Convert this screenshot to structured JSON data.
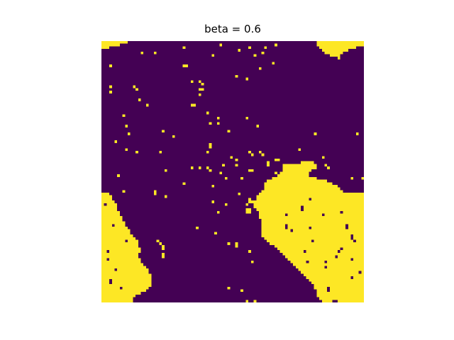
{
  "chart_data": {
    "type": "heatmap",
    "title": "beta = 0.6",
    "xlabel": "",
    "ylabel": "",
    "grid": false,
    "axes_visible": false,
    "colormap": "viridis",
    "rows": 100,
    "cols": 100,
    "background_value": -1,
    "background_color": "#440154",
    "cluster_value": 1,
    "cluster_color": "#fde725",
    "clusters": [
      {
        "name": "top-left-edge",
        "fill_rows": [
          [
            0,
            0,
            9
          ],
          [
            1,
            0,
            6
          ],
          [
            2,
            0,
            2
          ]
        ]
      },
      {
        "name": "top-right-corner",
        "fill_rows": [
          [
            0,
            82,
            99
          ],
          [
            1,
            82,
            99
          ],
          [
            2,
            83,
            96
          ],
          [
            3,
            84,
            93
          ],
          [
            4,
            85,
            91
          ],
          [
            5,
            87,
            90
          ]
        ]
      },
      {
        "name": "left-blob",
        "fill_rows": [
          [
            58,
            0,
            2
          ],
          [
            59,
            0,
            3
          ],
          [
            60,
            0,
            3
          ],
          [
            61,
            0,
            4
          ],
          [
            62,
            0,
            5
          ],
          [
            63,
            0,
            5
          ],
          [
            64,
            0,
            5
          ],
          [
            65,
            0,
            6
          ],
          [
            66,
            0,
            6
          ],
          [
            67,
            0,
            7
          ],
          [
            68,
            0,
            7
          ],
          [
            69,
            0,
            8
          ],
          [
            70,
            0,
            8
          ],
          [
            71,
            0,
            9
          ],
          [
            72,
            0,
            10
          ],
          [
            73,
            0,
            10
          ],
          [
            74,
            0,
            11
          ],
          [
            75,
            0,
            12
          ],
          [
            76,
            0,
            13
          ],
          [
            77,
            0,
            13
          ],
          [
            78,
            0,
            13
          ],
          [
            79,
            0,
            14
          ],
          [
            80,
            0,
            14
          ],
          [
            81,
            0,
            13
          ],
          [
            82,
            0,
            13
          ],
          [
            83,
            0,
            14
          ],
          [
            84,
            0,
            14
          ],
          [
            85,
            0,
            15
          ],
          [
            86,
            0,
            16
          ],
          [
            87,
            0,
            17
          ],
          [
            88,
            0,
            17
          ],
          [
            89,
            0,
            18
          ],
          [
            90,
            0,
            18
          ],
          [
            91,
            0,
            18
          ],
          [
            92,
            0,
            18
          ],
          [
            93,
            0,
            18
          ],
          [
            94,
            0,
            17
          ],
          [
            95,
            0,
            16
          ],
          [
            96,
            0,
            14
          ],
          [
            97,
            0,
            12
          ],
          [
            98,
            0,
            11
          ],
          [
            99,
            0,
            11
          ]
        ]
      },
      {
        "name": "right-blob",
        "fill_rows": [
          [
            46,
            76,
            80
          ],
          [
            47,
            69,
            81
          ],
          [
            48,
            69,
            81
          ],
          [
            49,
            69,
            79
          ],
          [
            50,
            68,
            78
          ],
          [
            51,
            67,
            78
          ],
          [
            52,
            65,
            81
          ],
          [
            53,
            63,
            85
          ],
          [
            54,
            62,
            87
          ],
          [
            55,
            62,
            89
          ],
          [
            56,
            62,
            90
          ],
          [
            57,
            61,
            91
          ],
          [
            58,
            60,
            99
          ],
          [
            59,
            59,
            99
          ],
          [
            60,
            59,
            99
          ],
          [
            61,
            58,
            99
          ],
          [
            62,
            58,
            99
          ],
          [
            63,
            58,
            99
          ],
          [
            64,
            59,
            99
          ],
          [
            65,
            60,
            99
          ],
          [
            66,
            60,
            99
          ],
          [
            67,
            60,
            99
          ],
          [
            68,
            61,
            99
          ],
          [
            69,
            61,
            99
          ],
          [
            70,
            61,
            99
          ],
          [
            71,
            61,
            99
          ],
          [
            72,
            61,
            99
          ],
          [
            73,
            61,
            99
          ],
          [
            74,
            61,
            99
          ],
          [
            75,
            62,
            99
          ],
          [
            76,
            63,
            99
          ],
          [
            77,
            64,
            99
          ],
          [
            78,
            66,
            99
          ],
          [
            79,
            67,
            99
          ],
          [
            80,
            68,
            99
          ],
          [
            81,
            69,
            99
          ],
          [
            82,
            70,
            99
          ],
          [
            83,
            71,
            99
          ],
          [
            84,
            72,
            99
          ],
          [
            85,
            73,
            99
          ],
          [
            86,
            74,
            99
          ],
          [
            87,
            75,
            99
          ],
          [
            88,
            76,
            99
          ],
          [
            89,
            77,
            99
          ],
          [
            90,
            78,
            99
          ],
          [
            91,
            79,
            99
          ],
          [
            92,
            80,
            99
          ],
          [
            93,
            81,
            99
          ],
          [
            94,
            81,
            99
          ],
          [
            95,
            82,
            99
          ],
          [
            96,
            82,
            99
          ],
          [
            97,
            82,
            99
          ],
          [
            98,
            83,
            99
          ],
          [
            99,
            84,
            99
          ]
        ]
      }
    ],
    "holes": [
      [
        63,
        76
      ],
      [
        64,
        76
      ],
      [
        66,
        84
      ],
      [
        70,
        70
      ],
      [
        71,
        70
      ],
      [
        72,
        72
      ],
      [
        70,
        93
      ],
      [
        71,
        93
      ],
      [
        74,
        95
      ],
      [
        75,
        95
      ],
      [
        79,
        91
      ],
      [
        80,
        90
      ],
      [
        82,
        89
      ],
      [
        84,
        78
      ],
      [
        86,
        85
      ],
      [
        88,
        98
      ],
      [
        76,
        96
      ],
      [
        94,
        86
      ],
      [
        95,
        86
      ],
      [
        97,
        80
      ],
      [
        66,
        70
      ],
      [
        80,
        77
      ],
      [
        99,
        88
      ],
      [
        99,
        89
      ],
      [
        84,
        85
      ],
      [
        76,
        80
      ],
      [
        83,
        95
      ],
      [
        71,
        79
      ],
      [
        90,
        95
      ],
      [
        60,
        79
      ],
      [
        65,
        91
      ],
      [
        61,
        6
      ],
      [
        59,
        4
      ],
      [
        80,
        2
      ],
      [
        83,
        2
      ],
      [
        87,
        5
      ],
      [
        91,
        3
      ],
      [
        92,
        3
      ],
      [
        94,
        7
      ],
      [
        70,
        4
      ],
      [
        76,
        9
      ],
      [
        62,
        1
      ]
    ],
    "isolated_points": [
      [
        4,
        15
      ],
      [
        4,
        20
      ],
      [
        2,
        31
      ],
      [
        5,
        42
      ],
      [
        3,
        52
      ],
      [
        5,
        58
      ],
      [
        4,
        61
      ],
      [
        2,
        56
      ],
      [
        2,
        62
      ],
      [
        1,
        66
      ],
      [
        8,
        65
      ],
      [
        9,
        3
      ],
      [
        10,
        60
      ],
      [
        14,
        55
      ],
      [
        13,
        51
      ],
      [
        1,
        45
      ],
      [
        6,
        90
      ],
      [
        19,
        3
      ],
      [
        17,
        12
      ],
      [
        18,
        13
      ],
      [
        20,
        37
      ],
      [
        22,
        14
      ],
      [
        24,
        17
      ],
      [
        27,
        40
      ],
      [
        28,
        8
      ],
      [
        29,
        55
      ],
      [
        31,
        44
      ],
      [
        32,
        59
      ],
      [
        34,
        48
      ],
      [
        35,
        81
      ],
      [
        35,
        97
      ],
      [
        36,
        27
      ],
      [
        34,
        23
      ],
      [
        35,
        10
      ],
      [
        38,
        5
      ],
      [
        41,
        9
      ],
      [
        42,
        13
      ],
      [
        42,
        22
      ],
      [
        42,
        40
      ],
      [
        43,
        57
      ],
      [
        42,
        60
      ],
      [
        43,
        61
      ],
      [
        42,
        56
      ],
      [
        44,
        49
      ],
      [
        45,
        51
      ],
      [
        47,
        46
      ],
      [
        47,
        51
      ],
      [
        48,
        34
      ],
      [
        48,
        37
      ],
      [
        48,
        40
      ],
      [
        48,
        86
      ],
      [
        49,
        24
      ],
      [
        49,
        56
      ],
      [
        49,
        57
      ],
      [
        49,
        41
      ],
      [
        50,
        45
      ],
      [
        51,
        6
      ],
      [
        52,
        53
      ],
      [
        52,
        95
      ],
      [
        52,
        99
      ],
      [
        52,
        47
      ],
      [
        53,
        69
      ],
      [
        54,
        31
      ],
      [
        55,
        42
      ],
      [
        57,
        65
      ],
      [
        57,
        8
      ],
      [
        58,
        52
      ],
      [
        59,
        24
      ],
      [
        60,
        84
      ],
      [
        61,
        42
      ],
      [
        62,
        47
      ],
      [
        63,
        4
      ],
      [
        65,
        44
      ],
      [
        66,
        65
      ],
      [
        68,
        84
      ],
      [
        71,
        36
      ],
      [
        73,
        43
      ],
      [
        77,
        51
      ],
      [
        77,
        48
      ],
      [
        78,
        51
      ],
      [
        80,
        56
      ],
      [
        84,
        57
      ],
      [
        94,
        48
      ],
      [
        95,
        53
      ],
      [
        99,
        55
      ],
      [
        99,
        58
      ],
      [
        31,
        41
      ],
      [
        32,
        9
      ],
      [
        15,
        34
      ],
      [
        29,
        44
      ],
      [
        44,
        84
      ],
      [
        47,
        85
      ],
      [
        41,
        75
      ]
    ],
    "extra_fills": [
      [
        9,
        31
      ],
      [
        9,
        32
      ],
      [
        18,
        37
      ],
      [
        18,
        38
      ],
      [
        24,
        34
      ],
      [
        24,
        35
      ],
      [
        17,
        3
      ],
      [
        15,
        37
      ],
      [
        16,
        38
      ],
      [
        39,
        41
      ],
      [
        40,
        41
      ],
      [
        45,
        66
      ],
      [
        45,
        67
      ],
      [
        49,
        70
      ],
      [
        48,
        71
      ],
      [
        60,
        56
      ],
      [
        61,
        56
      ],
      [
        61,
        57
      ],
      [
        62,
        55
      ],
      [
        54,
        76
      ],
      [
        55,
        76
      ],
      [
        47,
        63
      ],
      [
        46,
        63
      ],
      [
        50,
        66
      ],
      [
        57,
        20
      ],
      [
        58,
        20
      ],
      [
        76,
        21
      ],
      [
        77,
        22
      ],
      [
        78,
        23
      ],
      [
        79,
        23
      ],
      [
        81,
        23
      ],
      [
        82,
        23
      ],
      [
        64,
        55
      ],
      [
        65,
        55
      ],
      [
        64,
        56
      ],
      [
        65,
        56
      ],
      [
        76,
        71
      ],
      [
        77,
        71
      ],
      [
        75,
        62
      ],
      [
        74,
        62
      ]
    ]
  }
}
